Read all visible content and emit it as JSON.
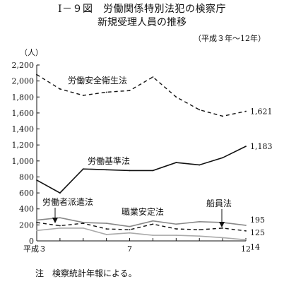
{
  "figure": {
    "title_line1": "Ⅰ－９図　労働関係特別法犯の検察庁",
    "title_line2": "新規受理人員の推移",
    "subtitle": "（平成３年～12年）",
    "note": "注　検察統計年報による。"
  },
  "chart_data": {
    "type": "line",
    "ylabel": "（人）",
    "ylim": [
      0,
      2200
    ],
    "yticks": [
      0,
      200,
      400,
      600,
      800,
      1000,
      1200,
      1400,
      1600,
      1800,
      2000,
      2200
    ],
    "ytick_labels": [
      "0",
      "200",
      "400",
      "600",
      "800",
      "1,000",
      "1,200",
      "1,400",
      "1,600",
      "1,800",
      "2,000",
      "2,200"
    ],
    "x": [
      3,
      4,
      5,
      6,
      7,
      8,
      9,
      10,
      11,
      12
    ],
    "xlim": [
      3,
      12
    ],
    "xtick_labels": [
      {
        "x": 3,
        "label": "平成３"
      },
      {
        "x": 7,
        "label": "7"
      },
      {
        "x": 12,
        "label": "12"
      }
    ],
    "series": [
      {
        "name": "労働安全衛生法",
        "style": "dashed",
        "color": "#111111",
        "values": [
          2080,
          1900,
          1820,
          1860,
          1880,
          2050,
          1800,
          1640,
          1560,
          1621
        ],
        "end_label": "1,621"
      },
      {
        "name": "労働基準法",
        "style": "solid",
        "color": "#111111",
        "values": [
          760,
          600,
          900,
          890,
          880,
          880,
          980,
          950,
          1040,
          1183
        ],
        "end_label": "1,183"
      },
      {
        "name": "職業安定法",
        "style": "solid",
        "color": "#888888",
        "values": [
          260,
          290,
          230,
          220,
          180,
          250,
          210,
          240,
          230,
          195
        ],
        "end_label": "195"
      },
      {
        "name": "船員法",
        "style": "dashed",
        "color": "#111111",
        "values": [
          230,
          190,
          220,
          150,
          140,
          210,
          150,
          140,
          160,
          125
        ],
        "end_label": "125"
      },
      {
        "name": "労働者派遣法",
        "style": "solid",
        "color": "#aaaaaa",
        "values": [
          130,
          160,
          160,
          80,
          100,
          70,
          70,
          60,
          40,
          14
        ],
        "end_label": "14"
      }
    ]
  }
}
